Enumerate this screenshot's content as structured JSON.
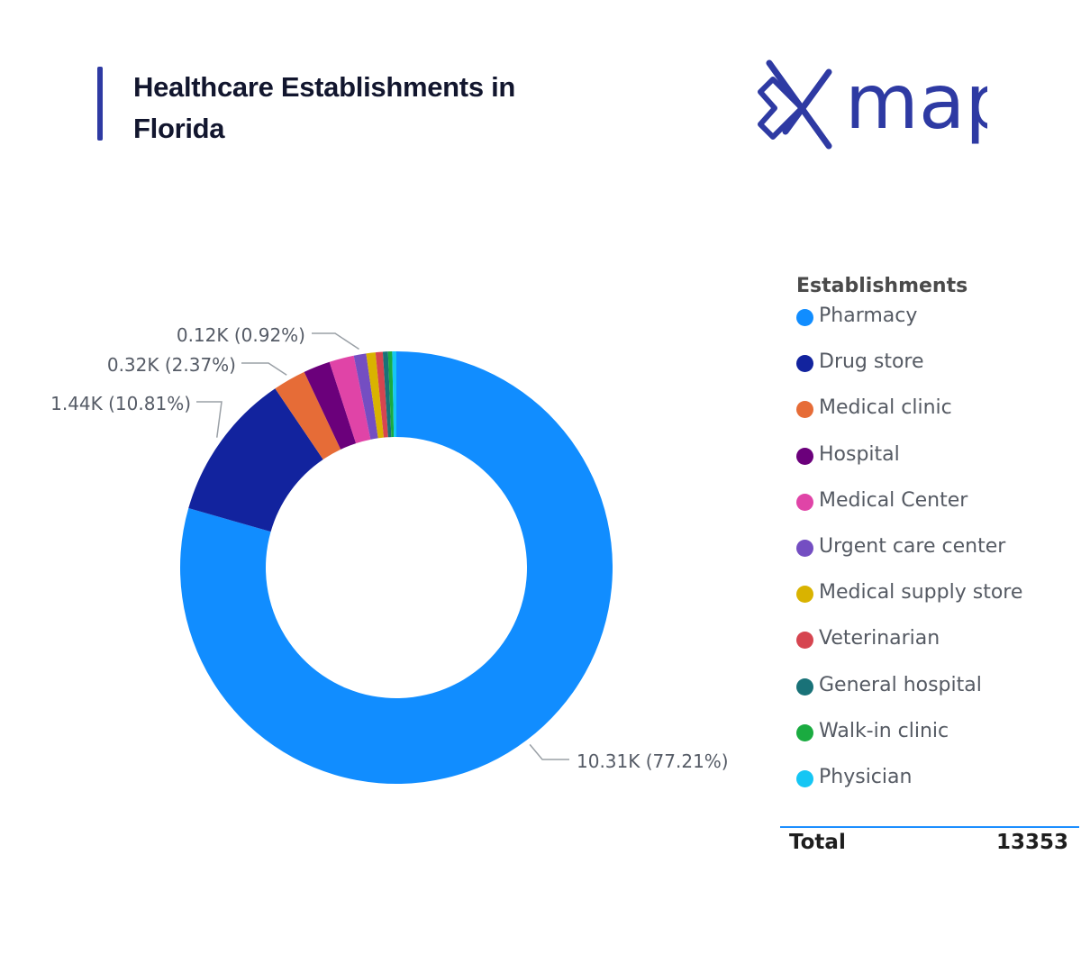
{
  "header": {
    "title": "Healthcare Establishments in Florida",
    "logo_text": "map",
    "accent_color": "#2e3aa3"
  },
  "chart_data": {
    "type": "pie",
    "variant": "donut",
    "legend_title": "Establishments",
    "legend_placement": "right",
    "total": 13353,
    "categories": [
      "Pharmacy",
      "Drug store",
      "Medical clinic",
      "Hospital",
      "Medical Center",
      "Urgent care center",
      "Medical supply store",
      "Veterinarian",
      "General hospital",
      "Walk-in clinic",
      "Physician"
    ],
    "values": [
      10310,
      1440,
      320,
      260,
      240,
      120,
      90,
      70,
      50,
      40,
      40
    ],
    "percents": [
      77.21,
      10.81,
      2.37,
      null,
      null,
      0.92,
      null,
      null,
      null,
      null,
      null
    ],
    "colors": [
      "#118dff",
      "#12239e",
      "#e66c37",
      "#6b007b",
      "#e044a7",
      "#744ec2",
      "#d9b300",
      "#d64550",
      "#197278",
      "#1aab40",
      "#15c6f4"
    ],
    "data_labels": [
      {
        "category": "Pharmacy",
        "text": "10.31K (77.21%)"
      },
      {
        "category": "Drug store",
        "text": "1.44K (10.81%)"
      },
      {
        "category": "Medical clinic",
        "text": "0.32K (2.37%)"
      },
      {
        "category": "Urgent care center",
        "text": "0.12K (0.92%)"
      }
    ]
  },
  "footer": {
    "total_label": "Total",
    "total_value": "13353"
  }
}
